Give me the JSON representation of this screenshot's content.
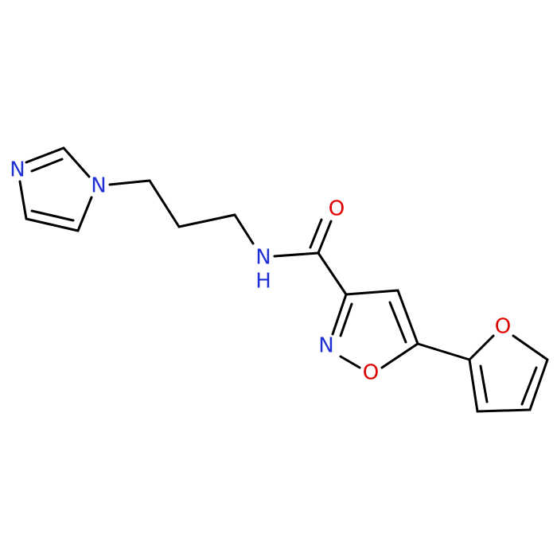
{
  "atoms": [
    {
      "label": "N"
    },
    {
      "label": "N"
    },
    {
      "label": "N",
      "hydrogen": "H"
    },
    {
      "label": "O"
    },
    {
      "label": "N"
    },
    {
      "label": "O"
    },
    {
      "label": "O"
    }
  ]
}
